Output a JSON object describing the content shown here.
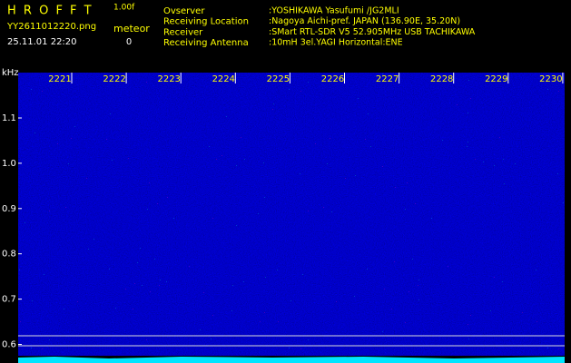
{
  "header": {
    "app": "H R O F F T",
    "version": "1.00f",
    "file": "YY2611012220.png",
    "meteor_label": "meteor",
    "datetime": "25.11.01 22:20",
    "meteor_count": "0"
  },
  "info": [
    {
      "label": "Ovserver",
      "value": ":YOSHIKAWA Yasufumi /JG2MLI"
    },
    {
      "label": "Receiving Location",
      "value": ":Nagoya Aichi-pref. JAPAN (136.90E, 35.20N)"
    },
    {
      "label": "Receiver",
      "value": ":SMart RTL-SDR V5 52.905MHz USB TACHIKAWA"
    },
    {
      "label": "Receiving Antenna",
      "value": ":10mH 3el.YAGI Horizontal:ENE"
    }
  ],
  "axis": {
    "unit": "kHz",
    "y_labels": [
      "1.1",
      "1.0",
      "0.9",
      "0.8",
      "0.7",
      "0.6"
    ],
    "x_labels": [
      "2221",
      "2222",
      "2223",
      "2224",
      "2225",
      "2226",
      "2227",
      "2228",
      "2229",
      "2230"
    ]
  }
}
